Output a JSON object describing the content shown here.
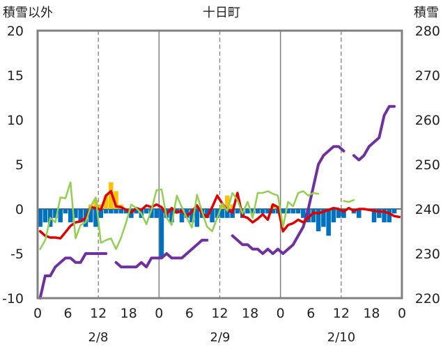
{
  "chart_data": {
    "type": "combo",
    "title": "十日町",
    "left_axis_label": "積雪以外",
    "right_axis_label": "積雪",
    "left_ylim": [
      -10,
      20
    ],
    "right_ylim": [
      220,
      280
    ],
    "left_ticks": [
      "-10",
      "-5",
      "0",
      "5",
      "10",
      "15",
      "20"
    ],
    "right_ticks": [
      "220",
      "230",
      "240",
      "250",
      "260",
      "270",
      "280"
    ],
    "x_hours_range": [
      0,
      72
    ],
    "x_tick_labels": [
      "0",
      "6",
      "12",
      "18",
      "0",
      "6",
      "12",
      "18",
      "0",
      "6",
      "12",
      "18",
      "0"
    ],
    "day_labels": [
      "2/8",
      "2/9",
      "2/10"
    ],
    "colors": {
      "snow_depth": "#7030a0",
      "temperature": "#e00000",
      "precip_change": "#92d050",
      "snowfall": "#0070c0",
      "precip": "#ffc000",
      "grid": "#808080",
      "frame": "#808080"
    },
    "series": [
      {
        "name": "snow_depth",
        "axis": "right",
        "values": [
          [
            0,
            220
          ],
          [
            1,
            225
          ],
          [
            2,
            225
          ],
          [
            3,
            227
          ],
          [
            4,
            228
          ],
          [
            5,
            229
          ],
          [
            6,
            229
          ],
          [
            7,
            228
          ],
          [
            8,
            228
          ],
          [
            9,
            230
          ],
          [
            10,
            230
          ],
          [
            11,
            230
          ],
          [
            12,
            230
          ],
          [
            13,
            230
          ],
          [
            15,
            228
          ],
          [
            16,
            227
          ],
          [
            17,
            227
          ],
          [
            18,
            227
          ],
          [
            19,
            227
          ],
          [
            20,
            228
          ],
          [
            21,
            227
          ],
          [
            22,
            229
          ],
          [
            23,
            229
          ],
          [
            24,
            229
          ],
          [
            25,
            230
          ],
          [
            26,
            229
          ],
          [
            27,
            229
          ],
          [
            28,
            229
          ],
          [
            29,
            230
          ],
          [
            30,
            231
          ],
          [
            31,
            232
          ],
          [
            32,
            233
          ],
          [
            33,
            233
          ],
          [
            38,
            234
          ],
          [
            39,
            233
          ],
          [
            40,
            232
          ],
          [
            41,
            232
          ],
          [
            42,
            231
          ],
          [
            43,
            231
          ],
          [
            44,
            230
          ],
          [
            45,
            231
          ],
          [
            46,
            230
          ],
          [
            47,
            231
          ],
          [
            48,
            230
          ],
          [
            49,
            231
          ],
          [
            50,
            232
          ],
          [
            51,
            234
          ],
          [
            52,
            236
          ],
          [
            53,
            240
          ],
          [
            54,
            245
          ],
          [
            55,
            250
          ],
          [
            56,
            252
          ],
          [
            57,
            253
          ],
          [
            58,
            254
          ],
          [
            59,
            254
          ],
          [
            60,
            253
          ],
          [
            62,
            252
          ],
          [
            63,
            251
          ],
          [
            64,
            252
          ],
          [
            65,
            254
          ],
          [
            66,
            255
          ],
          [
            67,
            256
          ],
          [
            68,
            261
          ],
          [
            69,
            263
          ],
          [
            70,
            263
          ]
        ]
      },
      {
        "name": "temperature",
        "axis": "left",
        "values": [
          [
            0,
            -2.5
          ],
          [
            1,
            -3.0
          ],
          [
            2,
            -3.2
          ],
          [
            3,
            -3.2
          ],
          [
            4,
            -3.3
          ],
          [
            5,
            -2.6
          ],
          [
            6,
            -1.9
          ],
          [
            7,
            -1.5
          ],
          [
            8,
            -1.4
          ],
          [
            9,
            -1.0
          ],
          [
            10,
            0.2
          ],
          [
            11,
            0.1
          ],
          [
            12,
            -0.1
          ],
          [
            13,
            1.5
          ],
          [
            14,
            2.0
          ],
          [
            15,
            0.3
          ],
          [
            16,
            0.2
          ],
          [
            17,
            -0.1
          ],
          [
            18,
            -0.4
          ],
          [
            19,
            0.1
          ],
          [
            20,
            -0.1
          ],
          [
            21,
            0.4
          ],
          [
            22,
            0.2
          ],
          [
            23,
            0.5
          ],
          [
            24,
            0.2
          ],
          [
            25,
            -0.6
          ],
          [
            26,
            0.1
          ],
          [
            27,
            -0.4
          ],
          [
            28,
            -0.2
          ],
          [
            29,
            -0.8
          ],
          [
            30,
            -0.3
          ],
          [
            31,
            0.4
          ],
          [
            32,
            -0.5
          ],
          [
            33,
            -0.9
          ],
          [
            34,
            0.2
          ],
          [
            35,
            1.5
          ],
          [
            36,
            0.6
          ],
          [
            37,
            -0.1
          ],
          [
            38,
            -0.4
          ],
          [
            39,
            1.8
          ],
          [
            40,
            -0.8
          ],
          [
            41,
            -1.0
          ],
          [
            42,
            -1.5
          ],
          [
            43,
            -1.1
          ],
          [
            44,
            -0.6
          ],
          [
            45,
            -1.2
          ],
          [
            46,
            0.5
          ],
          [
            47,
            0.2
          ],
          [
            48,
            -2.5
          ],
          [
            49,
            -1.8
          ],
          [
            50,
            -1.6
          ],
          [
            51,
            -1.2
          ],
          [
            52,
            -1.5
          ],
          [
            53,
            -1.0
          ],
          [
            54,
            -0.4
          ],
          [
            55,
            -0.5
          ],
          [
            56,
            -0.3
          ],
          [
            57,
            -0.1
          ],
          [
            58,
            0.1
          ],
          [
            59,
            0.0
          ],
          [
            60,
            -0.3
          ],
          [
            61,
            0.1
          ],
          [
            62,
            -0.2
          ],
          [
            63,
            0.0
          ],
          [
            64,
            0.0
          ],
          [
            65,
            -0.1
          ],
          [
            66,
            -0.2
          ],
          [
            67,
            -0.3
          ],
          [
            68,
            -0.3
          ],
          [
            69,
            -0.5
          ],
          [
            70,
            -0.8
          ],
          [
            71,
            -0.9
          ]
        ]
      },
      {
        "name": "precip_change",
        "axis": "left",
        "values": [
          [
            0,
            -4.5
          ],
          [
            1,
            -3.5
          ],
          [
            2,
            -1.0
          ],
          [
            3,
            -1.5
          ],
          [
            4,
            1.3
          ],
          [
            5,
            1.2
          ],
          [
            6,
            3.0
          ],
          [
            7,
            -3.3
          ],
          [
            8,
            -1.8
          ],
          [
            9,
            -1.5
          ],
          [
            10,
            0.3
          ],
          [
            11,
            1.3
          ],
          [
            12,
            -3.8
          ],
          [
            13,
            -3.5
          ],
          [
            14,
            -3.3
          ],
          [
            15,
            -4.5
          ],
          [
            16,
            -3.2
          ],
          [
            17,
            -1.5
          ],
          [
            18,
            0.5
          ],
          [
            19,
            0.1
          ],
          [
            20,
            -0.5
          ],
          [
            21,
            -1.7
          ],
          [
            22,
            -0.1
          ],
          [
            23,
            2.1
          ],
          [
            24,
            2.2
          ],
          [
            25,
            -1.0
          ],
          [
            26,
            -1.8
          ],
          [
            27,
            1.5
          ],
          [
            28,
            0.2
          ],
          [
            29,
            -1.0
          ],
          [
            30,
            -2.1
          ],
          [
            31,
            1.6
          ],
          [
            32,
            -0.3
          ],
          [
            33,
            -2.0
          ],
          [
            34,
            -2.5
          ],
          [
            35,
            -1.0
          ],
          [
            36,
            0.6
          ],
          [
            37,
            -0.2
          ],
          [
            38,
            1.8
          ],
          [
            39,
            1.0
          ],
          [
            40,
            -0.5
          ],
          [
            41,
            0.8
          ],
          [
            42,
            -1.0
          ],
          [
            43,
            1.8
          ],
          [
            44,
            1.8
          ],
          [
            45,
            2.0
          ],
          [
            46,
            1.7
          ],
          [
            47,
            1.5
          ],
          [
            48,
            -2.0
          ],
          [
            49,
            0.8
          ],
          [
            50,
            0.3
          ],
          [
            51,
            1.8
          ],
          [
            52,
            2.0
          ],
          [
            53,
            1.5
          ],
          [
            54,
            1.8
          ],
          [
            55,
            1.7
          ],
          [
            60,
            0.9
          ],
          [
            61,
            0.8
          ],
          [
            62,
            1.0
          ]
        ]
      }
    ],
    "bars": [
      {
        "name": "snowfall",
        "axis": "left",
        "values": [
          [
            0,
            -2.0
          ],
          [
            1,
            -1.5
          ],
          [
            2,
            -2.0
          ],
          [
            3,
            -1.0
          ],
          [
            4,
            -1.5
          ],
          [
            5,
            -0.5
          ],
          [
            6,
            -1.5
          ],
          [
            7,
            -1.0
          ],
          [
            8,
            -1.5
          ],
          [
            9,
            -2.0
          ],
          [
            10,
            -1.5
          ],
          [
            11,
            -2.0
          ],
          [
            12,
            -1.0
          ],
          [
            13,
            -0.5
          ],
          [
            14,
            -0.5
          ],
          [
            15,
            -0.5
          ],
          [
            16,
            -0.5
          ],
          [
            17,
            -0.5
          ],
          [
            18,
            -1.0
          ],
          [
            19,
            -0.5
          ],
          [
            20,
            -1.0
          ],
          [
            21,
            -0.5
          ],
          [
            22,
            -1.0
          ],
          [
            23,
            -1.0
          ],
          [
            24,
            -5.5
          ],
          [
            25,
            -1.0
          ],
          [
            26,
            -1.5
          ],
          [
            27,
            -0.5
          ],
          [
            28,
            -1.5
          ],
          [
            29,
            -1.0
          ],
          [
            30,
            -1.5
          ],
          [
            31,
            -2.0
          ],
          [
            32,
            -1.0
          ],
          [
            33,
            -1.0
          ],
          [
            34,
            -1.5
          ],
          [
            35,
            -1.0
          ],
          [
            36,
            -1.0
          ],
          [
            37,
            -1.0
          ],
          [
            38,
            -1.0
          ],
          [
            39,
            -0.5
          ],
          [
            40,
            -1.0
          ],
          [
            41,
            -0.5
          ],
          [
            42,
            -0.5
          ],
          [
            43,
            -0.5
          ],
          [
            44,
            -0.5
          ],
          [
            45,
            -0.5
          ],
          [
            46,
            -0.5
          ],
          [
            47,
            -0.5
          ],
          [
            48,
            -0.5
          ],
          [
            49,
            -0.5
          ],
          [
            50,
            -0.5
          ],
          [
            51,
            -0.5
          ],
          [
            52,
            -1.0
          ],
          [
            53,
            -1.5
          ],
          [
            54,
            -1.5
          ],
          [
            55,
            -2.5
          ],
          [
            56,
            -2.0
          ],
          [
            57,
            -3.0
          ],
          [
            58,
            -1.5
          ],
          [
            59,
            -1.0
          ],
          [
            60,
            -1.0
          ],
          [
            62,
            -0.5
          ],
          [
            63,
            -1.0
          ],
          [
            66,
            -1.5
          ],
          [
            67,
            -1.0
          ],
          [
            68,
            -1.5
          ],
          [
            69,
            -1.5
          ],
          [
            70,
            -0.5
          ]
        ]
      },
      {
        "name": "precip",
        "axis": "left",
        "values": [
          [
            10,
            0.5
          ],
          [
            11,
            1.0
          ],
          [
            12,
            0.5
          ],
          [
            13,
            1.5
          ],
          [
            14,
            3.0
          ],
          [
            15,
            2.0
          ],
          [
            16,
            0.5
          ],
          [
            36,
            0.5
          ],
          [
            37,
            1.5
          ],
          [
            38,
            0.5
          ],
          [
            46,
            0.5
          ]
        ]
      }
    ]
  }
}
